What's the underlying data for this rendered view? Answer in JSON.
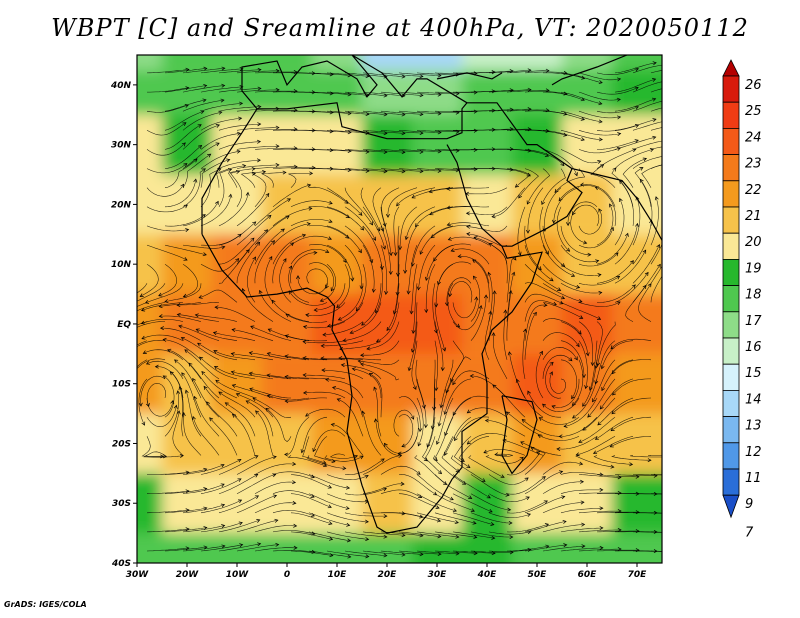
{
  "title": "WBPT [C] and Sreamline at 400hPa, VT: 2020050112",
  "credit": "GrADS: IGES/COLA",
  "axes": {
    "lat_labels": [
      "40N",
      "30N",
      "20N",
      "10N",
      "EQ",
      "10S",
      "20S",
      "30S",
      "40S"
    ],
    "lat_values": [
      40,
      30,
      20,
      10,
      0,
      -10,
      -20,
      -30,
      -40
    ],
    "lon_labels": [
      "30W",
      "20W",
      "10W",
      "0",
      "10E",
      "20E",
      "30E",
      "40E",
      "50E",
      "60E",
      "70E"
    ],
    "lon_values": [
      -30,
      -20,
      -10,
      0,
      10,
      20,
      30,
      40,
      50,
      60,
      70
    ],
    "lon_range": [
      -30,
      75
    ],
    "lat_range": [
      -40,
      45
    ]
  },
  "colorbar": {
    "labels": [
      "26",
      "25",
      "24",
      "23",
      "22",
      "21",
      "20",
      "19",
      "18",
      "17",
      "16",
      "15",
      "14",
      "13",
      "12",
      "11",
      "9",
      "7"
    ],
    "colors": [
      "#b40000",
      "#d81a0c",
      "#f03c14",
      "#f45a18",
      "#f47a1a",
      "#f49a1e",
      "#f6c24a",
      "#fae896",
      "#27b82d",
      "#4fc84f",
      "#8edc88",
      "#c8f0c8",
      "#d6f2fc",
      "#a8d8f8",
      "#7ab8f0",
      "#5098e8",
      "#2a6ed8",
      "#1a4fc8"
    ]
  },
  "chart_data": {
    "type": "heatmap",
    "title": "WBPT [C] and Sreamline at 400hPa, VT: 2020050112",
    "variable": "WBPT [C]",
    "level": "400hPa",
    "valid_time": "2020050112",
    "overlay": "streamlines",
    "x": [
      -30,
      -20,
      -10,
      0,
      10,
      20,
      30,
      40,
      50,
      60,
      70
    ],
    "y": [
      45,
      40,
      30,
      20,
      10,
      0,
      -10,
      -20,
      -30,
      -40
    ],
    "z": [
      [
        16,
        17,
        17,
        17,
        16,
        14,
        14,
        15,
        15,
        16,
        17
      ],
      [
        17,
        17,
        17,
        17,
        17,
        16,
        16,
        17,
        17,
        17,
        18
      ],
      [
        19,
        18,
        19,
        19,
        19,
        18,
        17,
        17,
        18,
        19,
        19
      ],
      [
        19,
        19,
        19,
        20,
        20,
        20,
        20,
        19,
        20,
        20,
        19
      ],
      [
        20,
        21,
        22,
        22,
        21,
        22,
        22,
        22,
        21,
        20,
        20
      ],
      [
        21,
        22,
        22,
        22,
        23,
        23,
        23,
        22,
        22,
        23,
        22
      ],
      [
        21,
        20,
        21,
        22,
        22,
        22,
        22,
        22,
        23,
        22,
        21
      ],
      [
        19,
        20,
        20,
        20,
        21,
        21,
        19,
        20,
        21,
        20,
        20
      ],
      [
        18,
        19,
        19,
        19,
        19,
        20,
        19,
        18,
        19,
        19,
        18
      ],
      [
        17,
        17,
        17,
        17,
        17,
        17,
        18,
        18,
        17,
        17,
        17
      ]
    ]
  }
}
